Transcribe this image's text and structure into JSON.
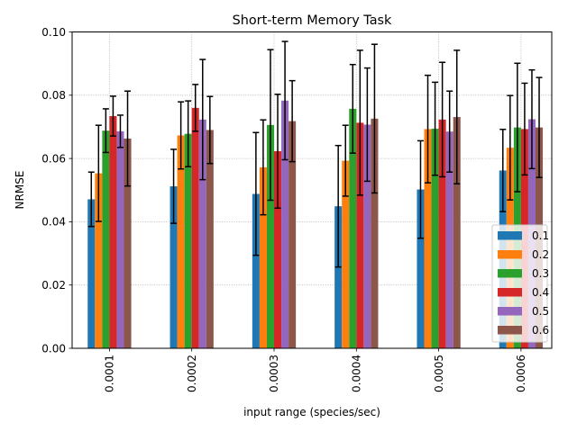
{
  "chart_data": {
    "type": "bar",
    "title": "Short-term Memory Task",
    "xlabel": "input range (species/sec)",
    "ylabel": "NRMSE",
    "ylim": [
      0,
      0.1
    ],
    "yticks": [
      0.0,
      0.02,
      0.04,
      0.06,
      0.08,
      0.1
    ],
    "ytick_labels": [
      "0.00",
      "0.02",
      "0.04",
      "0.06",
      "0.08",
      "0.10"
    ],
    "grid": true,
    "legend_position": "lower-right",
    "categories": [
      "0.0001",
      "0.0002",
      "0.0003",
      "0.0004",
      "0.0005",
      "0.0006"
    ],
    "series": [
      {
        "name": "0.1",
        "color": "#1f77b4",
        "values": [
          0.0471,
          0.0512,
          0.0488,
          0.0449,
          0.0502,
          0.0562
        ],
        "errors": [
          0.0086,
          0.0117,
          0.0194,
          0.0192,
          0.0154,
          0.013
        ]
      },
      {
        "name": "0.2",
        "color": "#ff7f0e",
        "values": [
          0.0553,
          0.0673,
          0.0572,
          0.0593,
          0.0693,
          0.0634
        ],
        "errors": [
          0.0152,
          0.0106,
          0.015,
          0.0112,
          0.017,
          0.0165
        ]
      },
      {
        "name": "0.3",
        "color": "#2ca02c",
        "values": [
          0.0688,
          0.0678,
          0.0706,
          0.0757,
          0.0694,
          0.0698
        ],
        "errors": [
          0.0069,
          0.0104,
          0.0238,
          0.014,
          0.0147,
          0.0203
        ]
      },
      {
        "name": "0.4",
        "color": "#d62728",
        "values": [
          0.0734,
          0.076,
          0.0623,
          0.0713,
          0.0723,
          0.0693
        ],
        "errors": [
          0.0063,
          0.0074,
          0.018,
          0.0229,
          0.0181,
          0.0145
        ]
      },
      {
        "name": "0.5",
        "color": "#9467bd",
        "values": [
          0.0686,
          0.0723,
          0.0783,
          0.0707,
          0.0685,
          0.0724
        ],
        "errors": [
          0.0051,
          0.019,
          0.0187,
          0.0179,
          0.0128,
          0.0156
        ]
      },
      {
        "name": "0.6",
        "color": "#8c564b",
        "values": [
          0.0663,
          0.069,
          0.0718,
          0.0726,
          0.0731,
          0.0698
        ],
        "errors": [
          0.015,
          0.0106,
          0.0128,
          0.0235,
          0.0211,
          0.0158
        ]
      }
    ]
  }
}
